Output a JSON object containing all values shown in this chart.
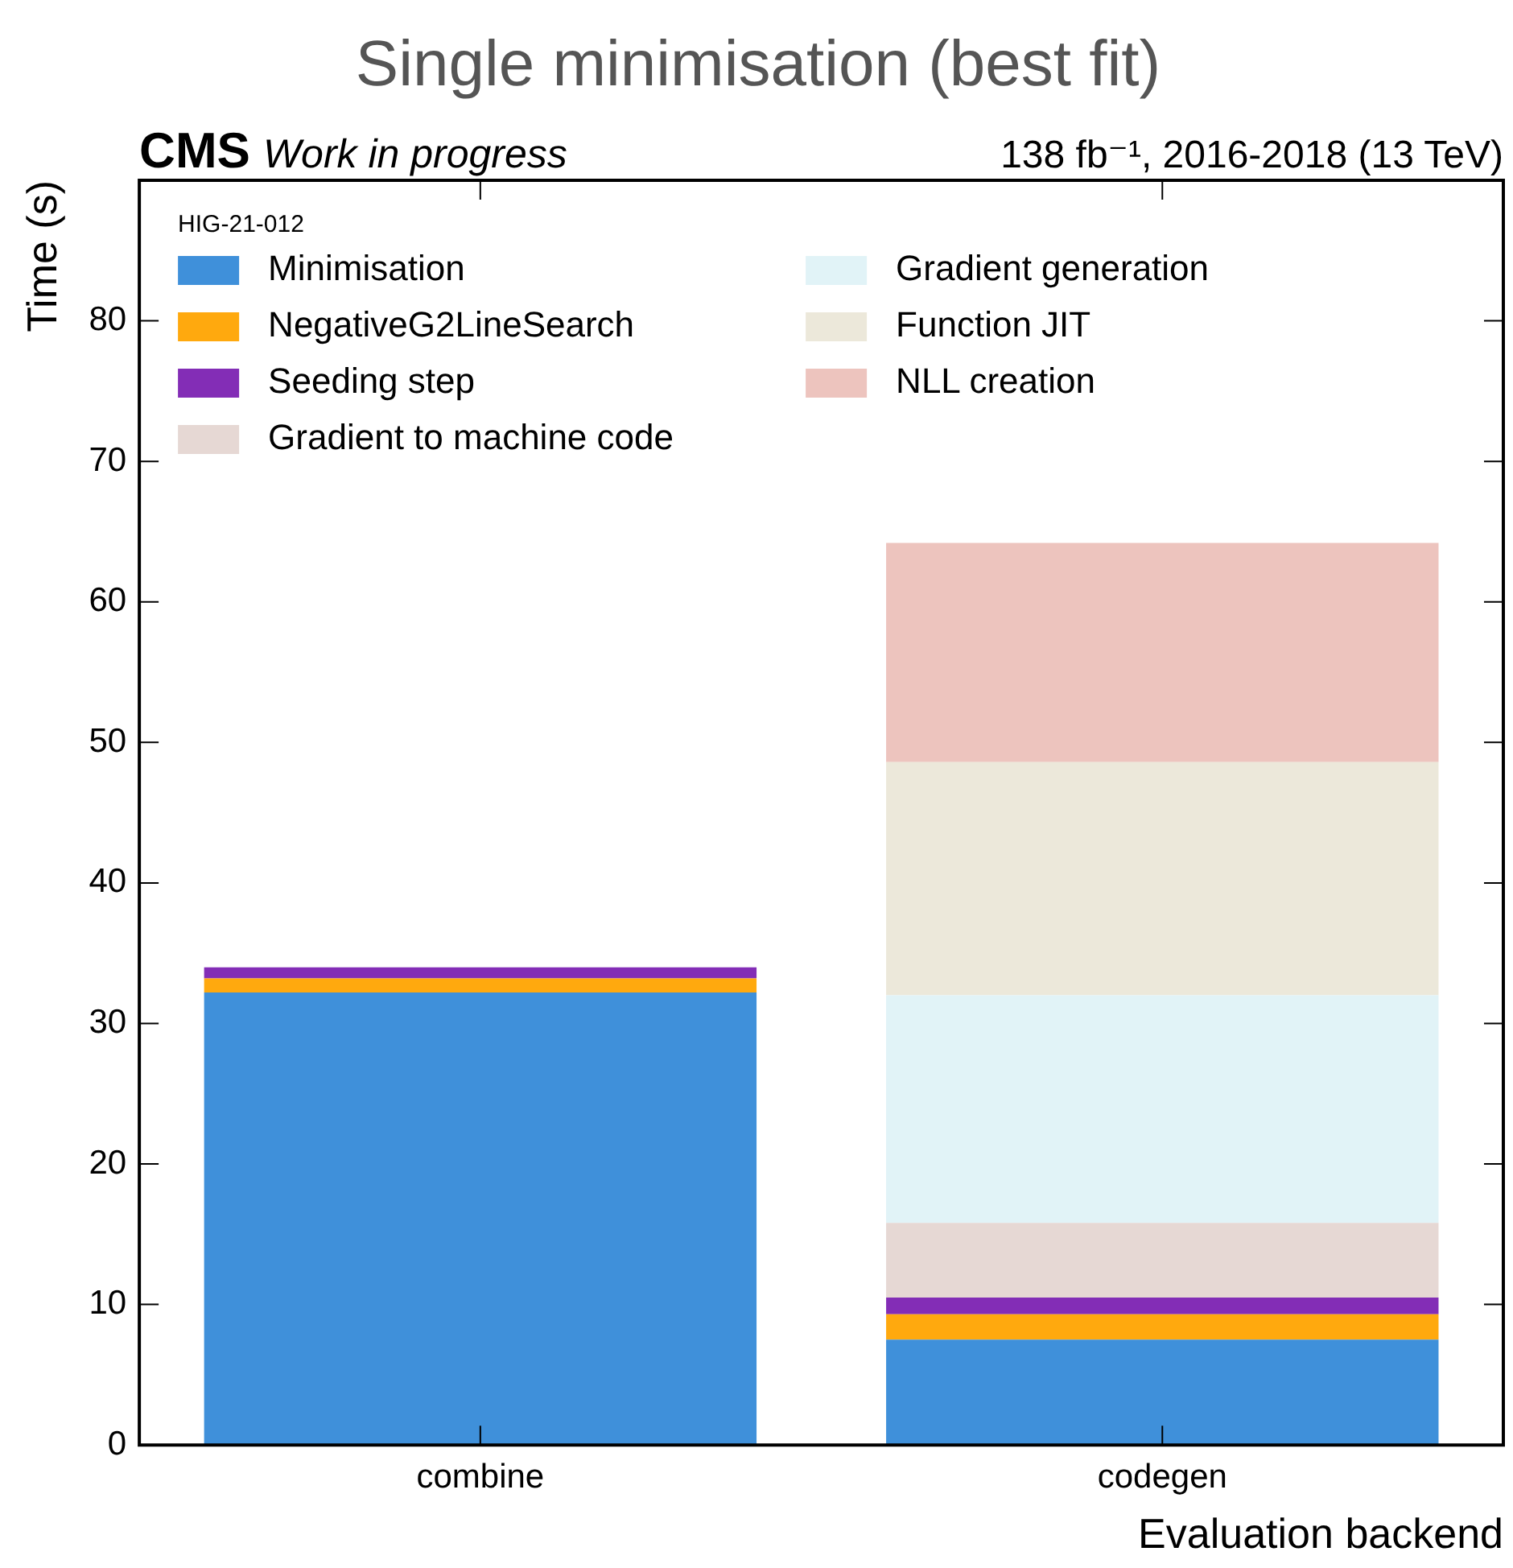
{
  "chart_data": {
    "type": "bar",
    "title": "Single minimisation (best fit)",
    "xlabel": "Evaluation backend",
    "ylabel": "Time (s)",
    "legend_title": "HIG-21-012",
    "annotations": [
      "CMS",
      "Work in progress",
      "138 fb⁻¹, 2016-2018 (13 TeV)"
    ],
    "categories": [
      "combine",
      "codegen"
    ],
    "stacked": true,
    "ylim": [
      0,
      90
    ],
    "yticks": [
      0,
      10,
      20,
      30,
      40,
      50,
      60,
      70,
      80
    ],
    "grid": false,
    "legend": "top left",
    "series": [
      {
        "name": "Minimisation",
        "color": "#3f90da",
        "values": [
          32.2,
          7.5
        ]
      },
      {
        "name": "NegativeG2LineSearch",
        "color": "#ffa90e",
        "values": [
          1.0,
          1.8
        ]
      },
      {
        "name": "Seeding step",
        "color": "#832db6",
        "values": [
          0.8,
          1.2
        ]
      },
      {
        "name": "Gradient to machine code",
        "color": "#e6d8d4",
        "values": [
          null,
          5.3
        ]
      },
      {
        "name": "Gradient generation",
        "color": "#e1f3f7",
        "values": [
          null,
          16.2
        ]
      },
      {
        "name": "Function JIT",
        "color": "#ece8da",
        "values": [
          null,
          16.6
        ]
      },
      {
        "name": "NLL creation",
        "color": "#edc4be",
        "values": [
          null,
          15.6
        ]
      }
    ]
  }
}
